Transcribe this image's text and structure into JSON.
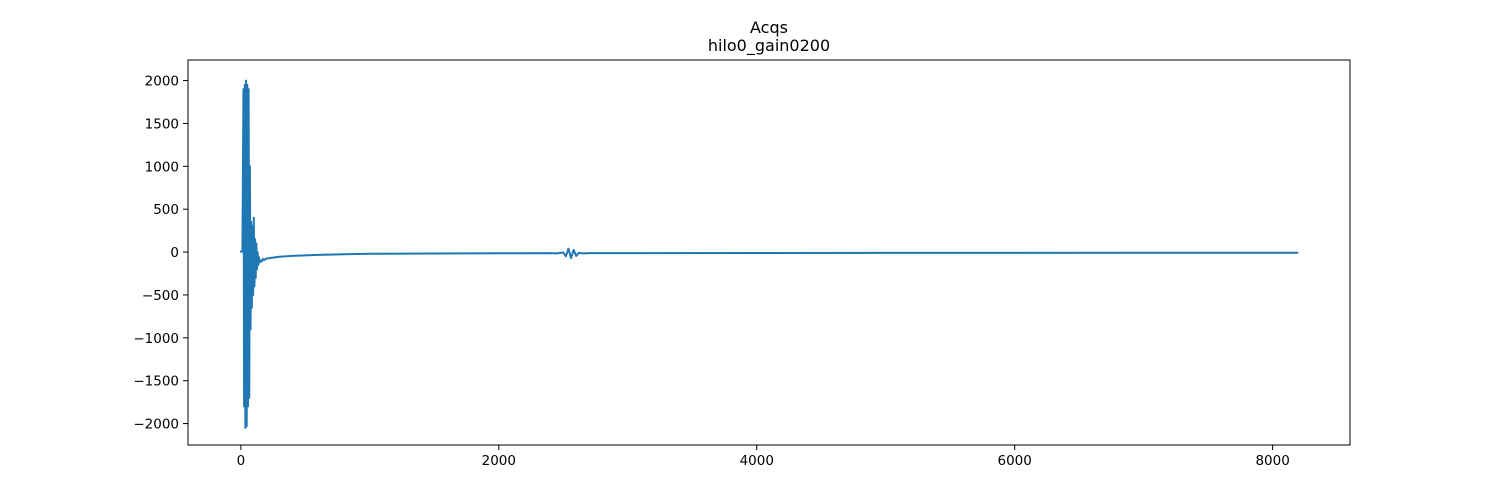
{
  "chart_data": {
    "type": "line",
    "title": "Acqs",
    "subtitle": "hilo0_gain0200",
    "xlabel": "",
    "ylabel": "",
    "xlim": [
      -410,
      8600
    ],
    "ylim": [
      -2250,
      2240
    ],
    "xticks": [
      0,
      2000,
      4000,
      6000,
      8000
    ],
    "xtick_labels": [
      "0",
      "2000",
      "4000",
      "6000",
      "8000"
    ],
    "yticks": [
      2000,
      1500,
      1000,
      500,
      0,
      -500,
      -1000,
      -1500,
      -2000
    ],
    "ytick_labels": [
      "2000",
      "1500",
      "1000",
      "500",
      "0",
      "−500",
      "−1000",
      "−1500",
      "−2000"
    ],
    "grid": false,
    "legend": "none",
    "line_color": "#1f77b4",
    "series": [
      {
        "x": [
          0,
          12,
          20,
          25,
          30,
          35,
          40,
          45,
          50,
          55,
          60,
          65,
          70,
          75,
          80,
          85,
          90,
          95,
          100,
          105,
          110,
          115,
          120,
          125,
          130,
          135,
          140,
          145,
          150,
          160,
          170,
          180,
          190,
          200,
          250,
          300,
          400,
          500,
          600,
          800,
          1000,
          1500,
          2000,
          2400,
          2450,
          2500,
          2520,
          2540,
          2560,
          2580,
          2600,
          2620,
          2650,
          2700,
          2800,
          3000,
          4000,
          5000,
          6000,
          7000,
          8000,
          8191
        ],
        "y": [
          5,
          5,
          1900,
          -1800,
          1950,
          -2050,
          2000,
          -2030,
          1950,
          -1800,
          1900,
          -1700,
          1000,
          -900,
          350,
          -650,
          300,
          -500,
          400,
          -400,
          150,
          -300,
          100,
          -200,
          0,
          -150,
          -60,
          -120,
          -100,
          -110,
          -80,
          -95,
          -80,
          -75,
          -65,
          -55,
          -45,
          -38,
          -32,
          -25,
          -20,
          -16,
          -14,
          -12,
          -15,
          -5,
          -50,
          40,
          -70,
          25,
          -45,
          -10,
          -15,
          -12,
          -12,
          -12,
          -11,
          -10,
          -9,
          -8,
          -8,
          -8
        ]
      }
    ]
  }
}
